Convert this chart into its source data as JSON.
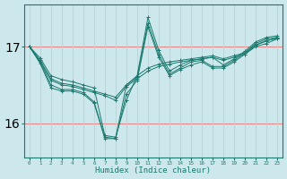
{
  "xlabel": "Humidex (Indice chaleur)",
  "bg_color": "#cce8ed",
  "grid_color_v": "#b0d8df",
  "grid_color_h": "#e08080",
  "line_color": "#1a7a6e",
  "x": [
    0,
    1,
    2,
    3,
    4,
    5,
    6,
    7,
    8,
    9,
    10,
    11,
    12,
    13,
    14,
    15,
    16,
    17,
    18,
    19,
    20,
    21,
    22,
    23
  ],
  "series1": [
    17.0,
    16.85,
    16.62,
    16.57,
    16.54,
    16.5,
    16.46,
    15.84,
    15.82,
    16.3,
    16.62,
    17.38,
    16.95,
    16.68,
    16.76,
    16.82,
    16.84,
    16.86,
    16.76,
    16.84,
    16.94,
    17.06,
    17.12,
    17.14
  ],
  "series2": [
    17.0,
    16.82,
    16.58,
    16.52,
    16.5,
    16.46,
    16.42,
    16.38,
    16.34,
    16.5,
    16.62,
    16.72,
    16.77,
    16.8,
    16.82,
    16.84,
    16.86,
    16.88,
    16.84,
    16.88,
    16.92,
    17.02,
    17.07,
    17.12
  ],
  "series3": [
    17.0,
    16.8,
    16.56,
    16.5,
    16.48,
    16.44,
    16.4,
    16.36,
    16.3,
    16.48,
    16.58,
    16.68,
    16.74,
    16.77,
    16.8,
    16.82,
    16.84,
    16.86,
    16.82,
    16.86,
    16.9,
    17.0,
    17.04,
    17.1
  ],
  "series4": [
    17.0,
    16.8,
    16.5,
    16.44,
    16.44,
    16.4,
    16.28,
    15.82,
    15.8,
    16.5,
    16.6,
    17.3,
    16.9,
    16.64,
    16.72,
    16.8,
    16.82,
    16.74,
    16.74,
    16.82,
    16.92,
    17.04,
    17.1,
    17.12
  ],
  "series5": [
    17.0,
    16.78,
    16.46,
    16.42,
    16.42,
    16.38,
    16.26,
    15.8,
    15.8,
    16.38,
    16.56,
    17.26,
    16.86,
    16.62,
    16.7,
    16.76,
    16.8,
    16.72,
    16.72,
    16.8,
    16.9,
    17.02,
    17.08,
    17.1
  ],
  "yticks": [
    16,
    17
  ],
  "ylim": [
    15.55,
    17.55
  ],
  "xlim": [
    -0.5,
    23.5
  ],
  "hline_y": [
    16,
    17
  ]
}
